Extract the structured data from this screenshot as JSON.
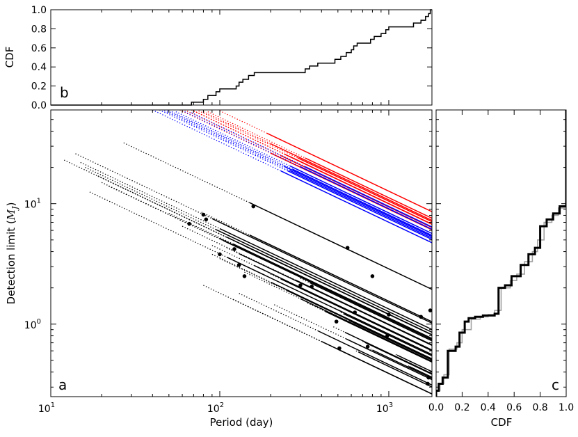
{
  "chart_data": [
    {
      "panel": "b",
      "type": "line",
      "subtype": "step-cdf",
      "panel_letter": "b",
      "ylabel": "CDF",
      "xlabel": "",
      "x_scale": "log",
      "xlim": [
        10,
        1800
      ],
      "ylim": [
        0,
        1
      ],
      "y_ticks": [
        "0.0",
        "0.2",
        "0.4",
        "0.6",
        "0.8",
        "1.0"
      ],
      "line_color": "#000000",
      "steps": [
        {
          "x": 65,
          "y": 0.0
        },
        {
          "x": 68,
          "y": 0.03
        },
        {
          "x": 80,
          "y": 0.06
        },
        {
          "x": 85,
          "y": 0.1
        },
        {
          "x": 95,
          "y": 0.14
        },
        {
          "x": 100,
          "y": 0.17
        },
        {
          "x": 125,
          "y": 0.2
        },
        {
          "x": 130,
          "y": 0.24
        },
        {
          "x": 137,
          "y": 0.27
        },
        {
          "x": 148,
          "y": 0.31
        },
        {
          "x": 160,
          "y": 0.34
        },
        {
          "x": 320,
          "y": 0.38
        },
        {
          "x": 340,
          "y": 0.41
        },
        {
          "x": 380,
          "y": 0.44
        },
        {
          "x": 480,
          "y": 0.48
        },
        {
          "x": 520,
          "y": 0.51
        },
        {
          "x": 560,
          "y": 0.55
        },
        {
          "x": 600,
          "y": 0.58
        },
        {
          "x": 620,
          "y": 0.62
        },
        {
          "x": 650,
          "y": 0.65
        },
        {
          "x": 780,
          "y": 0.69
        },
        {
          "x": 820,
          "y": 0.72
        },
        {
          "x": 900,
          "y": 0.75
        },
        {
          "x": 960,
          "y": 0.79
        },
        {
          "x": 1000,
          "y": 0.82
        },
        {
          "x": 1400,
          "y": 0.86
        },
        {
          "x": 1550,
          "y": 0.89
        },
        {
          "x": 1650,
          "y": 0.93
        },
        {
          "x": 1720,
          "y": 0.96
        },
        {
          "x": 1760,
          "y": 1.0
        }
      ]
    },
    {
      "panel": "a",
      "type": "line",
      "panel_letter": "a",
      "xlabel": "Period (day)",
      "ylabel": "Detection limit (M_J)",
      "x_scale": "log",
      "y_scale": "log",
      "xlim": [
        10,
        1800
      ],
      "ylim": [
        0.25,
        60
      ],
      "x_ticks": [
        {
          "value": 10,
          "label": "10^1"
        },
        {
          "value": 100,
          "label": "10^2"
        },
        {
          "value": 1000,
          "label": "10^3"
        }
      ],
      "y_ticks": [
        {
          "value": 1,
          "label": "10^0"
        },
        {
          "value": 10,
          "label": "10^1"
        }
      ],
      "slope_loglog": -0.667,
      "series_colors": {
        "black": "#000000",
        "red": "#ff0000",
        "blue": "#0000ff"
      },
      "lines": [
        {
          "color": "black",
          "p0": 12,
          "m0": 23,
          "p1": 140,
          "p2": 1800
        },
        {
          "color": "black",
          "p0": 14,
          "m0": 26,
          "p1": 90,
          "p2": 1800
        },
        {
          "color": "black",
          "p0": 15,
          "m0": 22,
          "p1": 100,
          "p2": 1800
        },
        {
          "color": "black",
          "p0": 16,
          "m0": 20,
          "p1": 95,
          "p2": 1800
        },
        {
          "color": "black",
          "p0": 17,
          "m0": 12.5,
          "p1": 110,
          "p2": 1800
        },
        {
          "color": "black",
          "p0": 19,
          "m0": 17,
          "p1": 110,
          "p2": 1800
        },
        {
          "color": "black",
          "p0": 20,
          "m0": 15,
          "p1": 100,
          "p2": 1800
        },
        {
          "color": "black",
          "p0": 22,
          "m0": 14,
          "p1": 105,
          "p2": 1800
        },
        {
          "color": "black",
          "p0": 27,
          "m0": 32,
          "p1": 150,
          "p2": 1800
        },
        {
          "color": "black",
          "p0": 50,
          "m0": 8.3,
          "p1": 120,
          "p2": 1800
        },
        {
          "color": "black",
          "p0": 60,
          "m0": 6.5,
          "p1": 280,
          "p2": 1800
        },
        {
          "color": "black",
          "p0": 78,
          "m0": 8.5,
          "p1": 150,
          "p2": 1800
        },
        {
          "color": "black",
          "p0": 80,
          "m0": 2.1,
          "p1": 400,
          "p2": 1800
        },
        {
          "color": "black",
          "p0": 90,
          "m0": 4.5,
          "p1": 160,
          "p2": 1800
        },
        {
          "color": "black",
          "p0": 90,
          "m0": 3.8,
          "p1": 200,
          "p2": 1800
        },
        {
          "color": "black",
          "p0": 100,
          "m0": 3.5,
          "p1": 250,
          "p2": 1800
        },
        {
          "color": "black",
          "p0": 110,
          "m0": 4.3,
          "p1": 130,
          "p2": 1800
        },
        {
          "color": "black",
          "p0": 120,
          "m0": 1.6,
          "p1": 500,
          "p2": 1800
        },
        {
          "color": "black",
          "p0": 130,
          "m0": 1.8,
          "p1": 380,
          "p2": 1800
        },
        {
          "color": "black",
          "p0": 140,
          "m0": 2.7,
          "p1": 300,
          "p2": 1800
        },
        {
          "color": "black",
          "p0": 200,
          "m0": 2.6,
          "p1": 230,
          "p2": 1800
        },
        {
          "color": "black",
          "p0": 210,
          "m0": 1.45,
          "p1": 560,
          "p2": 1800
        },
        {
          "color": "black",
          "p0": 300,
          "m0": 2.4,
          "p1": 340,
          "p2": 1800
        },
        {
          "color": "black",
          "p0": 330,
          "m0": 1.5,
          "p1": 420,
          "p2": 1800
        },
        {
          "color": "black",
          "p0": 470,
          "m0": 0.95,
          "p1": 550,
          "p2": 1800
        },
        {
          "color": "black",
          "p0": 480,
          "m0": 1.35,
          "p1": 500,
          "p2": 1800
        },
        {
          "color": "black",
          "p0": 520,
          "m0": 1.25,
          "p1": 540,
          "p2": 1800
        },
        {
          "color": "black",
          "p0": 560,
          "m0": 1.1,
          "p1": 580,
          "p2": 1800
        },
        {
          "color": "black",
          "p0": 600,
          "m0": 1.05,
          "p1": 620,
          "p2": 1800
        },
        {
          "color": "black",
          "p0": 640,
          "m0": 0.6,
          "p1": 660,
          "p2": 1800
        },
        {
          "color": "black",
          "p0": 700,
          "m0": 0.72,
          "p1": 720,
          "p2": 1800
        },
        {
          "color": "black",
          "p0": 780,
          "m0": 0.62,
          "p1": 800,
          "p2": 1800
        },
        {
          "color": "black",
          "p0": 1100,
          "m0": 0.56,
          "p1": 1120,
          "p2": 1800
        },
        {
          "color": "black",
          "p0": 1300,
          "m0": 0.45,
          "p1": 1320,
          "p2": 1800
        },
        {
          "color": "red",
          "p0": 58,
          "m0": 60,
          "p1": 200,
          "p2": 1800
        },
        {
          "color": "red",
          "p0": 62,
          "m0": 60,
          "p1": 230,
          "p2": 1800
        },
        {
          "color": "red",
          "p0": 68,
          "m0": 60,
          "p1": 240,
          "p2": 1800
        },
        {
          "color": "red",
          "p0": 70,
          "m0": 59,
          "p1": 260,
          "p2": 1800
        },
        {
          "color": "red",
          "p0": 75,
          "m0": 59,
          "p1": 290,
          "p2": 1800
        },
        {
          "color": "red",
          "p0": 80,
          "m0": 58,
          "p1": 200,
          "p2": 1800
        },
        {
          "color": "red",
          "p0": 85,
          "m0": 58,
          "p1": 320,
          "p2": 1800
        },
        {
          "color": "red",
          "p0": 100,
          "m0": 59,
          "p1": 190,
          "p2": 1800
        },
        {
          "color": "blue",
          "p0": 40,
          "m0": 60,
          "p1": 230,
          "p2": 1800
        },
        {
          "color": "blue",
          "p0": 44,
          "m0": 60,
          "p1": 250,
          "p2": 1800
        },
        {
          "color": "blue",
          "p0": 47,
          "m0": 59,
          "p1": 260,
          "p2": 1800
        },
        {
          "color": "blue",
          "p0": 49,
          "m0": 59,
          "p1": 240,
          "p2": 1800
        },
        {
          "color": "blue",
          "p0": 52,
          "m0": 58,
          "p1": 270,
          "p2": 1800
        },
        {
          "color": "blue",
          "p0": 55,
          "m0": 58,
          "p1": 260,
          "p2": 1800
        },
        {
          "color": "blue",
          "p0": 62,
          "m0": 58,
          "p1": 300,
          "p2": 1800
        },
        {
          "color": "blue",
          "p0": 68,
          "m0": 57,
          "p1": 320,
          "p2": 1800
        }
      ],
      "points": [
        {
          "x": 66,
          "y": 6.8
        },
        {
          "x": 80,
          "y": 8.1
        },
        {
          "x": 83,
          "y": 7.4
        },
        {
          "x": 100,
          "y": 3.8
        },
        {
          "x": 122,
          "y": 4.2
        },
        {
          "x": 130,
          "y": 3.1
        },
        {
          "x": 140,
          "y": 2.5
        },
        {
          "x": 158,
          "y": 9.5
        },
        {
          "x": 300,
          "y": 2.1
        },
        {
          "x": 350,
          "y": 2.05
        },
        {
          "x": 490,
          "y": 1.05
        },
        {
          "x": 510,
          "y": 0.63
        },
        {
          "x": 570,
          "y": 4.3
        },
        {
          "x": 630,
          "y": 1.25
        },
        {
          "x": 750,
          "y": 0.65
        },
        {
          "x": 800,
          "y": 2.5
        },
        {
          "x": 980,
          "y": 0.8
        },
        {
          "x": 1000,
          "y": 1.2
        },
        {
          "x": 1550,
          "y": 1.15
        },
        {
          "x": 1760,
          "y": 1.3
        },
        {
          "x": 1720,
          "y": 0.36
        },
        {
          "x": 1700,
          "y": 0.32
        }
      ]
    },
    {
      "panel": "c",
      "type": "line",
      "subtype": "step-cdf",
      "panel_letter": "c",
      "xlabel": "CDF",
      "ylabel": "",
      "y_scale": "log",
      "ylim": [
        0.25,
        60
      ],
      "xlim": [
        0,
        1
      ],
      "x_ticks": [
        "0.0",
        "0.2",
        "0.4",
        "0.6",
        "0.8",
        "1.0"
      ],
      "series": [
        {
          "name": "",
          "color": "#000000",
          "steps": [
            {
              "m": 0.28,
              "cdf": 0.0
            },
            {
              "m": 0.32,
              "cdf": 0.02
            },
            {
              "m": 0.36,
              "cdf": 0.05
            },
            {
              "m": 0.6,
              "cdf": 0.09
            },
            {
              "m": 0.65,
              "cdf": 0.15
            },
            {
              "m": 0.85,
              "cdf": 0.18
            },
            {
              "m": 1.05,
              "cdf": 0.22
            },
            {
              "m": 1.12,
              "cdf": 0.25
            },
            {
              "m": 1.15,
              "cdf": 0.3
            },
            {
              "m": 1.18,
              "cdf": 0.36
            },
            {
              "m": 1.22,
              "cdf": 0.45
            },
            {
              "m": 2.0,
              "cdf": 0.48
            },
            {
              "m": 2.1,
              "cdf": 0.53
            },
            {
              "m": 2.5,
              "cdf": 0.58
            },
            {
              "m": 3.1,
              "cdf": 0.65
            },
            {
              "m": 3.8,
              "cdf": 0.71
            },
            {
              "m": 4.3,
              "cdf": 0.76
            },
            {
              "m": 6.5,
              "cdf": 0.8
            },
            {
              "m": 7.4,
              "cdf": 0.85
            },
            {
              "m": 8.3,
              "cdf": 0.9
            },
            {
              "m": 9.5,
              "cdf": 0.95
            },
            {
              "m": 12.0,
              "cdf": 1.0
            }
          ]
        },
        {
          "name": "",
          "color": "#a0a0a0",
          "steps": [
            {
              "m": 0.28,
              "cdf": 0.0
            },
            {
              "m": 0.32,
              "cdf": 0.03
            },
            {
              "m": 0.38,
              "cdf": 0.06
            },
            {
              "m": 0.62,
              "cdf": 0.1
            },
            {
              "m": 0.7,
              "cdf": 0.16
            },
            {
              "m": 0.9,
              "cdf": 0.2
            },
            {
              "m": 1.1,
              "cdf": 0.27
            },
            {
              "m": 1.15,
              "cdf": 0.34
            },
            {
              "m": 1.2,
              "cdf": 0.4
            },
            {
              "m": 1.3,
              "cdf": 0.45
            },
            {
              "m": 2.0,
              "cdf": 0.5
            },
            {
              "m": 2.3,
              "cdf": 0.57
            },
            {
              "m": 2.6,
              "cdf": 0.62
            },
            {
              "m": 3.3,
              "cdf": 0.68
            },
            {
              "m": 4.0,
              "cdf": 0.74
            },
            {
              "m": 5.0,
              "cdf": 0.78
            },
            {
              "m": 7.0,
              "cdf": 0.83
            },
            {
              "m": 8.0,
              "cdf": 0.89
            },
            {
              "m": 9.2,
              "cdf": 0.94
            },
            {
              "m": 12.0,
              "cdf": 1.0
            }
          ]
        }
      ]
    }
  ]
}
